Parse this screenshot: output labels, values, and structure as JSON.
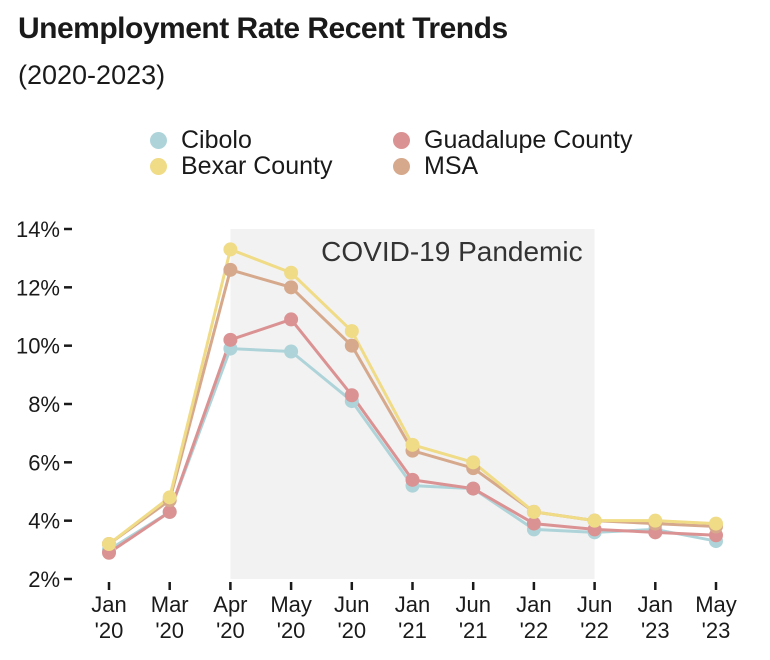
{
  "chart_data": {
    "type": "line",
    "title": "Unemployment Rate Recent Trends",
    "subtitle": "(2020-2023)",
    "xlabel": "",
    "ylabel": "",
    "ylim": [
      2,
      14
    ],
    "yticks": [
      "2%",
      "4%",
      "6%",
      "8%",
      "10%",
      "12%",
      "14%"
    ],
    "ytick_values": [
      2,
      4,
      6,
      8,
      10,
      12,
      14
    ],
    "categories": [
      [
        "Jan",
        "'20"
      ],
      [
        "Mar",
        "'20"
      ],
      [
        "Apr",
        "'20"
      ],
      [
        "May",
        "'20"
      ],
      [
        "Jun",
        "'20"
      ],
      [
        "Jan",
        "'21"
      ],
      [
        "Jun",
        "'21"
      ],
      [
        "Jan",
        "'22"
      ],
      [
        "Jun",
        "'22"
      ],
      [
        "Jan",
        "'23"
      ],
      [
        "May",
        "'23"
      ]
    ],
    "annotation": {
      "label": "COVID-19 Pandemic",
      "start_category": 2,
      "end_category": 8,
      "color": "#f2f2f2"
    },
    "legend_position": "top",
    "series": [
      {
        "name": "Cibolo",
        "color": "#aed4d9",
        "values": [
          3.0,
          4.3,
          9.9,
          9.8,
          8.1,
          5.2,
          5.1,
          3.7,
          3.6,
          3.7,
          3.3
        ]
      },
      {
        "name": "Guadalupe County",
        "color": "#db9293",
        "values": [
          2.9,
          4.3,
          10.2,
          10.9,
          8.3,
          5.4,
          5.1,
          3.9,
          3.7,
          3.6,
          3.5
        ]
      },
      {
        "name": "MSA",
        "color": "#d6a98c",
        "values": [
          3.2,
          4.7,
          12.6,
          12.0,
          10.0,
          6.4,
          5.8,
          4.3,
          4.0,
          3.9,
          3.8
        ]
      },
      {
        "name": "Bexar County",
        "color": "#f0db86",
        "values": [
          3.2,
          4.8,
          13.3,
          12.5,
          10.5,
          6.6,
          6.0,
          4.3,
          4.0,
          4.0,
          3.9
        ]
      }
    ],
    "legend_order": [
      "Cibolo",
      "Guadalupe County",
      "Bexar County",
      "MSA"
    ]
  }
}
